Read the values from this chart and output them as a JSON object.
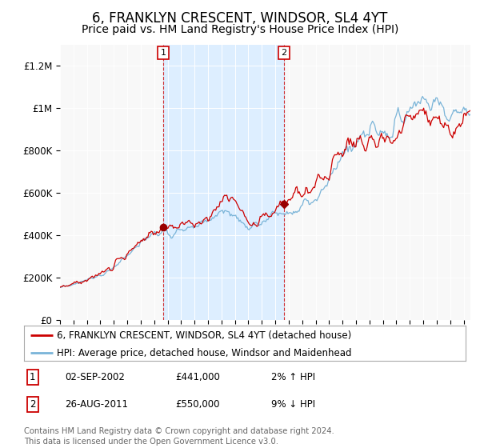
{
  "title": "6, FRANKLYN CRESCENT, WINDSOR, SL4 4YT",
  "subtitle": "Price paid vs. HM Land Registry's House Price Index (HPI)",
  "title_fontsize": 12,
  "subtitle_fontsize": 10,
  "ylim": [
    0,
    1300000
  ],
  "yticks": [
    0,
    200000,
    400000,
    600000,
    800000,
    1000000,
    1200000
  ],
  "ytick_labels": [
    "£0",
    "£200K",
    "£400K",
    "£600K",
    "£800K",
    "£1M",
    "£1.2M"
  ],
  "background_color": "#ffffff",
  "plot_bg_color": "#f0f0f0",
  "shaded_color": "#ddeeff",
  "hpi_line_color": "#7ab4d8",
  "price_line_color": "#cc0000",
  "marker_color": "#990000",
  "sale1_label": "1",
  "sale1_date": "02-SEP-2002",
  "sale1_price": "£441,000",
  "sale1_hpi": "2% ↑ HPI",
  "sale1_year": 2002.67,
  "sale1_value": 441000,
  "sale2_label": "2",
  "sale2_date": "26-AUG-2011",
  "sale2_price": "£550,000",
  "sale2_hpi": "9% ↓ HPI",
  "sale2_year": 2011.65,
  "sale2_value": 550000,
  "legend_line1": "6, FRANKLYN CRESCENT, WINDSOR, SL4 4YT (detached house)",
  "legend_line2": "HPI: Average price, detached house, Windsor and Maidenhead",
  "footnote1": "Contains HM Land Registry data © Crown copyright and database right 2024.",
  "footnote2": "This data is licensed under the Open Government Licence v3.0.",
  "xmin": 1995,
  "xmax": 2025.5
}
